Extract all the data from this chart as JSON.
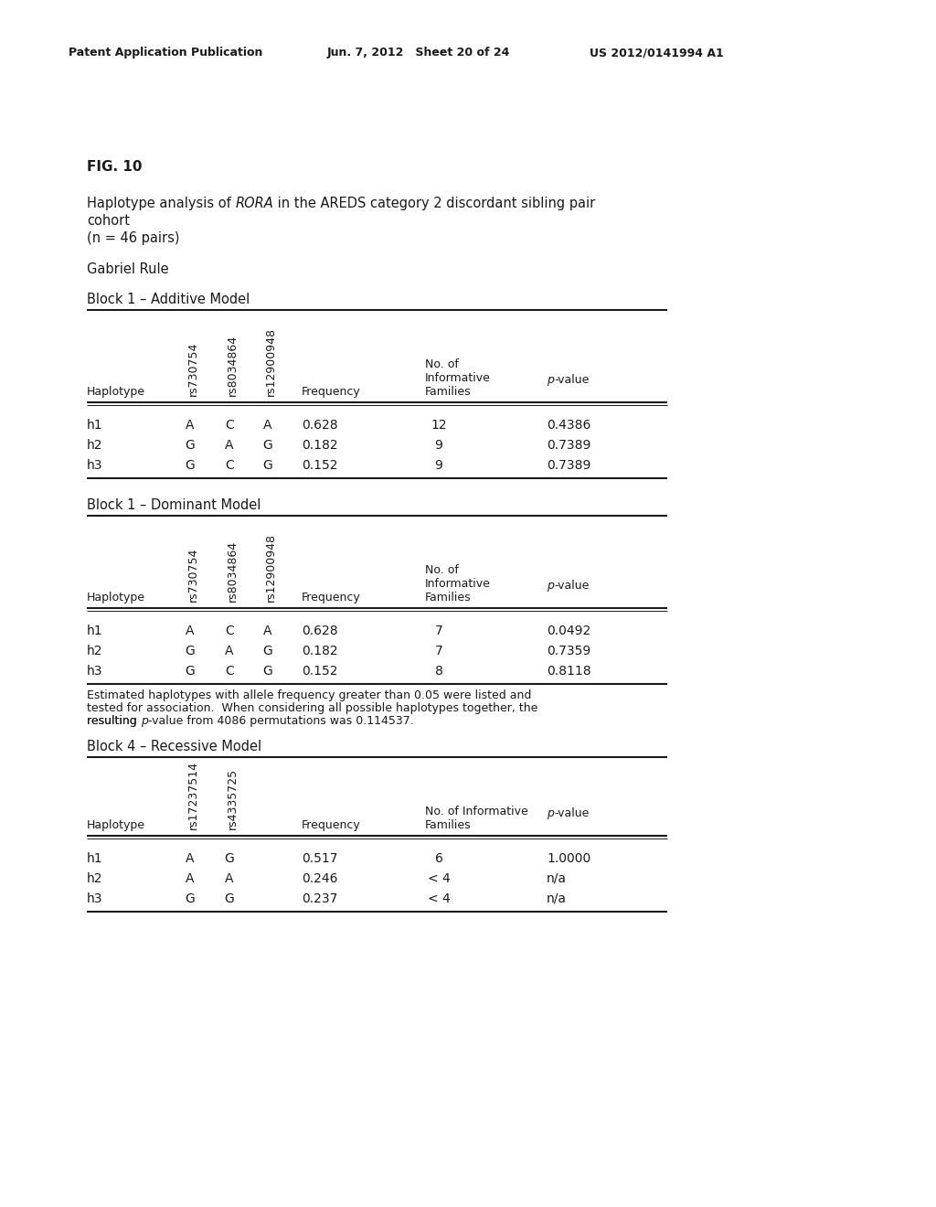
{
  "header_left": "Patent Application Publication",
  "header_mid": "Jun. 7, 2012   Sheet 20 of 24",
  "header_right": "US 2012/0141994 A1",
  "fig_label": "FIG. 10",
  "gabriel_rule": "Gabriel Rule",
  "block1_additive_title": "Block 1 – Additive Model",
  "block1_dominant_title": "Block 1 – Dominant Model",
  "block4_recessive_title": "Block 4 – Recessive Model",
  "table1_rows": [
    [
      "h1",
      "A",
      "C",
      "A",
      "0.628",
      "12",
      "0.4386"
    ],
    [
      "h2",
      "G",
      "A",
      "G",
      "0.182",
      "9",
      "0.7389"
    ],
    [
      "h3",
      "G",
      "C",
      "G",
      "0.152",
      "9",
      "0.7389"
    ]
  ],
  "table2_rows": [
    [
      "h1",
      "A",
      "C",
      "A",
      "0.628",
      "7",
      "0.0492"
    ],
    [
      "h2",
      "G",
      "A",
      "G",
      "0.182",
      "7",
      "0.7359"
    ],
    [
      "h3",
      "G",
      "C",
      "G",
      "0.152",
      "8",
      "0.8118"
    ]
  ],
  "table3_rows": [
    [
      "h1",
      "A",
      "G",
      "0.517",
      "6",
      "1.0000"
    ],
    [
      "h2",
      "A",
      "A",
      "0.246",
      "< 4",
      "n/a"
    ],
    [
      "h3",
      "G",
      "G",
      "0.237",
      "< 4",
      "n/a"
    ]
  ],
  "footnote_line1": "Estimated haplotypes with allele frequency greater than 0.05 were listed and",
  "footnote_line2": "tested for association.  When considering all possible haplotypes together, the",
  "footnote_line3": "resulting ",
  "footnote_pval": "p",
  "footnote_line3b": "-value from 4086 permutations was 0.114537.",
  "background_color": "#ffffff",
  "text_color": "#1a1a1a"
}
